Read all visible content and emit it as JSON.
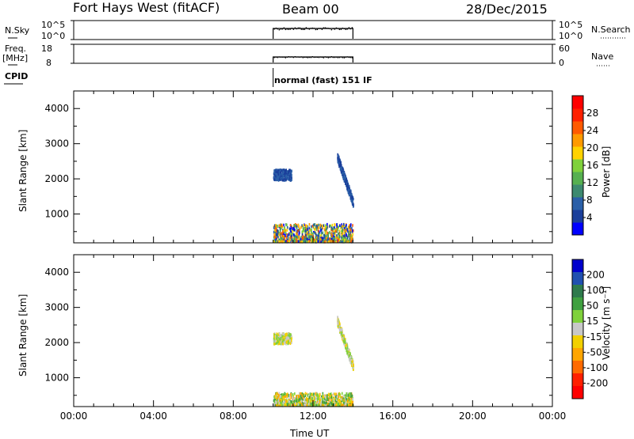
{
  "header": {
    "station": "Fort Hays West (fitACF)",
    "beam": "Beam 00",
    "date": "28/Dec/2015"
  },
  "strip_panels": {
    "nsky_label": "N.Sky",
    "nsky_ticks": [
      "10^5",
      "10^0"
    ],
    "nsearch_ticks": [
      "10^5",
      "10^0"
    ],
    "nsearch_label": "N.Search",
    "freq_label": "Freq.",
    "freq_unit": "[MHz]",
    "freq_ticks": [
      "18",
      "8"
    ],
    "nave_ticks": [
      "60",
      "0"
    ],
    "nave_label": "Nave",
    "cpid_label": "CPID",
    "cpid_value": "normal (fast) 151 IF"
  },
  "chart_data": [
    {
      "type": "heatmap",
      "name": "power",
      "xlabel": "",
      "ylabel": "Slant Range [km]",
      "x_ticks": [
        "00:00",
        "04:00",
        "08:00",
        "12:00",
        "16:00",
        "20:00",
        "00:00"
      ],
      "x_range_hours": [
        0,
        24
      ],
      "ylim": [
        180,
        4500
      ],
      "y_ticks": [
        1000,
        2000,
        3000,
        4000
      ],
      "colorbar_label": "Power [dB]",
      "colorbar_ticks": [
        "4",
        "8",
        "12",
        "16",
        "20",
        "24",
        "28"
      ],
      "colorbar_colors": [
        "#0000ff",
        "#1b3f9b",
        "#2a5fa8",
        "#3d8a70",
        "#56b050",
        "#7fd13b",
        "#ffd200",
        "#ff9a00",
        "#ff5a00",
        "#ff2000",
        "#ff0000"
      ],
      "scatter_regions": [
        {
          "t_start": 10.0,
          "t_end": 14.0,
          "range_start": 200,
          "range_end": 700,
          "density": "high"
        },
        {
          "t_start": 10.0,
          "t_end": 10.9,
          "range_start": 1950,
          "range_end": 2250,
          "density": "medium"
        },
        {
          "t_start": 13.2,
          "t_end": 14.0,
          "range_start": 1300,
          "range_end": 2600,
          "density": "medium"
        }
      ]
    },
    {
      "type": "heatmap",
      "name": "velocity",
      "xlabel": "Time UT",
      "ylabel": "Slant Range [km]",
      "x_ticks": [
        "00:00",
        "04:00",
        "08:00",
        "12:00",
        "16:00",
        "20:00",
        "00:00"
      ],
      "x_range_hours": [
        0,
        24
      ],
      "ylim": [
        180,
        4500
      ],
      "y_ticks": [
        1000,
        2000,
        3000,
        4000
      ],
      "colorbar_label": "Velocity [m s⁻¹]",
      "colorbar_ticks": [
        "200",
        "100",
        "50",
        "15",
        "-15",
        "-50",
        "-100",
        "-200"
      ],
      "colorbar_colors": [
        "#0000cc",
        "#2050b0",
        "#2e7a4c",
        "#3fa040",
        "#7fd13b",
        "#c8c8c8",
        "#f2d000",
        "#ffa500",
        "#ff6a00",
        "#ff2000",
        "#ff0000"
      ],
      "scatter_regions": [
        {
          "t_start": 10.0,
          "t_end": 14.0,
          "range_start": 200,
          "range_end": 550,
          "density": "high"
        },
        {
          "t_start": 10.0,
          "t_end": 10.9,
          "range_start": 1950,
          "range_end": 2250,
          "density": "medium"
        },
        {
          "t_start": 13.2,
          "t_end": 14.0,
          "range_start": 1300,
          "range_end": 2600,
          "density": "medium"
        }
      ]
    }
  ]
}
